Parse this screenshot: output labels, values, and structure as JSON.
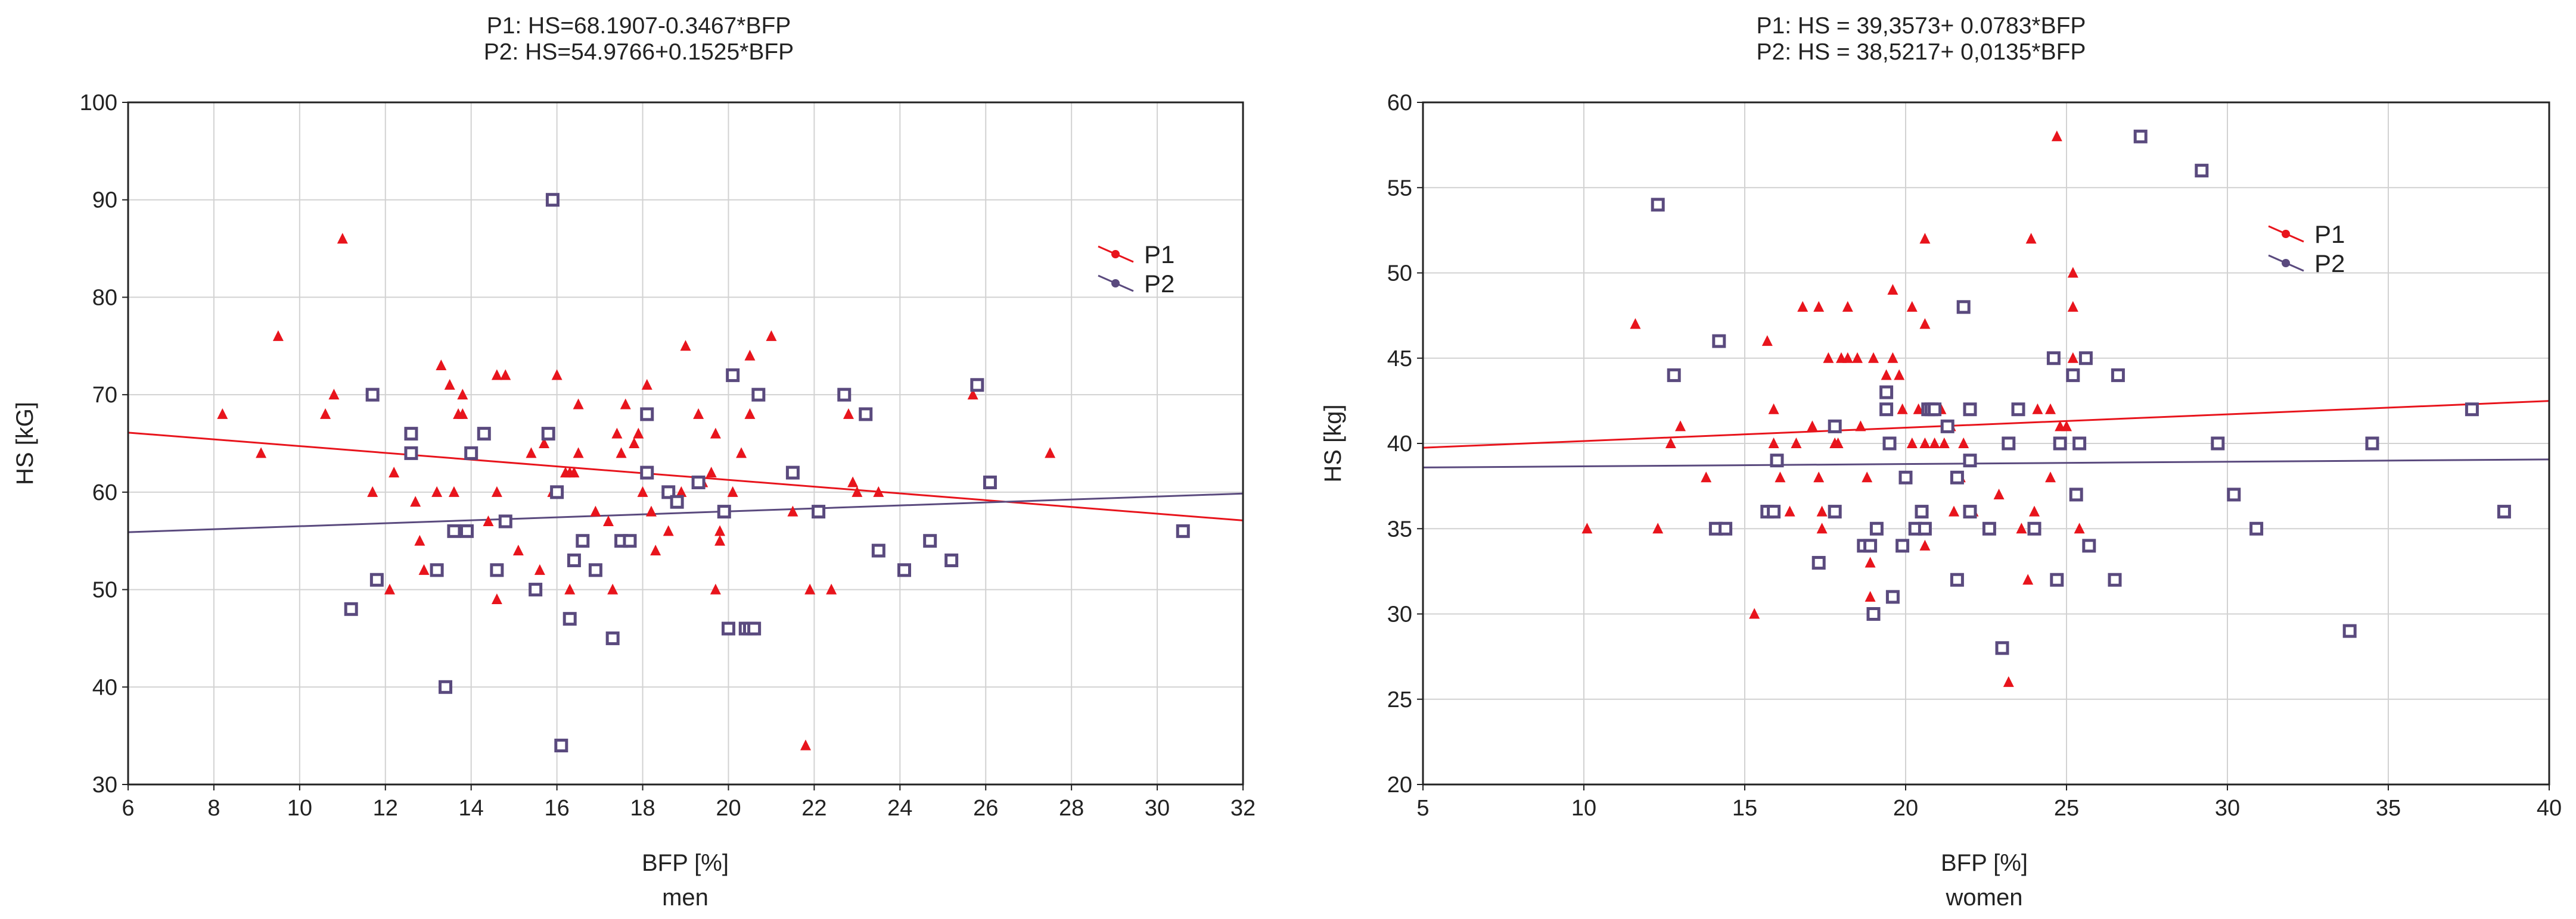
{
  "colors": {
    "p1": "#e8141c",
    "p2": "#5a4a7e",
    "grid": "#d2d2d2",
    "frame": "#222222"
  },
  "chart_data": [
    {
      "type": "scatter",
      "title": [
        "P1: HS=68.1907-0.3467*BFP",
        "P2: HS=54.9766+0.1525*BFP"
      ],
      "xlabel": "BFP [%]",
      "sublabel": "men",
      "ylabel": "HS [kG]",
      "xlim": [
        6,
        32
      ],
      "ylim": [
        30,
        100
      ],
      "xticks": [
        6,
        8,
        10,
        12,
        14,
        16,
        18,
        20,
        22,
        24,
        26,
        28,
        30,
        32
      ],
      "yticks": [
        30,
        40,
        50,
        60,
        70,
        80,
        90,
        100
      ],
      "legend": [
        "P1",
        "P2"
      ],
      "series": [
        {
          "name": "P1",
          "marker": "triangle",
          "fit": {
            "intercept": 68.1907,
            "slope": -0.3467
          },
          "points": [
            [
              8.2,
              68
            ],
            [
              9.1,
              64
            ],
            [
              9.5,
              76
            ],
            [
              10.6,
              68
            ],
            [
              10.8,
              70
            ],
            [
              11,
              86
            ],
            [
              11.7,
              60
            ],
            [
              12.1,
              50
            ],
            [
              12.2,
              62
            ],
            [
              12.7,
              59
            ],
            [
              12.8,
              55
            ],
            [
              12.9,
              52
            ],
            [
              13.2,
              60
            ],
            [
              13.3,
              73
            ],
            [
              13.5,
              71
            ],
            [
              13.6,
              60
            ],
            [
              13.7,
              68
            ],
            [
              13.8,
              68
            ],
            [
              13.8,
              70
            ],
            [
              14,
              64
            ],
            [
              14.4,
              57
            ],
            [
              14.6,
              72
            ],
            [
              14.6,
              60
            ],
            [
              14.6,
              49
            ],
            [
              14.8,
              72
            ],
            [
              15.1,
              54
            ],
            [
              15.4,
              64
            ],
            [
              15.6,
              52
            ],
            [
              15.7,
              65
            ],
            [
              15.9,
              60
            ],
            [
              16,
              72
            ],
            [
              16.2,
              62
            ],
            [
              16.3,
              62
            ],
            [
              16.3,
              50
            ],
            [
              16.4,
              62
            ],
            [
              16.5,
              69
            ],
            [
              16.5,
              64
            ],
            [
              16.9,
              58
            ],
            [
              17.2,
              57
            ],
            [
              17.3,
              50
            ],
            [
              17.4,
              66
            ],
            [
              17.5,
              64
            ],
            [
              17.6,
              69
            ],
            [
              17.8,
              65
            ],
            [
              17.9,
              66
            ],
            [
              18,
              60
            ],
            [
              18.1,
              71
            ],
            [
              18.2,
              58
            ],
            [
              18.3,
              54
            ],
            [
              18.6,
              56
            ],
            [
              18.9,
              60
            ],
            [
              19,
              75
            ],
            [
              19.3,
              68
            ],
            [
              19.4,
              61
            ],
            [
              19.6,
              62
            ],
            [
              19.7,
              66
            ],
            [
              19.7,
              50
            ],
            [
              19.8,
              56
            ],
            [
              19.8,
              55
            ],
            [
              20.1,
              60
            ],
            [
              20.3,
              64
            ],
            [
              20.5,
              74
            ],
            [
              20.5,
              68
            ],
            [
              21,
              76
            ],
            [
              21.5,
              58
            ],
            [
              21.9,
              50
            ],
            [
              21.8,
              34
            ],
            [
              22.4,
              50
            ],
            [
              22.8,
              68
            ],
            [
              22.9,
              61
            ],
            [
              23,
              60
            ],
            [
              23.5,
              60
            ],
            [
              25.7,
              70
            ],
            [
              27.5,
              64
            ]
          ]
        },
        {
          "name": "P2",
          "marker": "square",
          "fit": {
            "intercept": 54.9766,
            "slope": 0.1525
          },
          "points": [
            [
              11.2,
              48
            ],
            [
              11.7,
              70
            ],
            [
              11.8,
              51
            ],
            [
              12.6,
              66
            ],
            [
              12.6,
              64
            ],
            [
              13.2,
              52
            ],
            [
              13.4,
              40
            ],
            [
              13.6,
              56
            ],
            [
              13.9,
              56
            ],
            [
              14,
              64
            ],
            [
              14.3,
              66
            ],
            [
              14.6,
              52
            ],
            [
              14.8,
              57
            ],
            [
              15.5,
              50
            ],
            [
              15.8,
              66
            ],
            [
              15.9,
              90
            ],
            [
              16,
              60
            ],
            [
              16.1,
              34
            ],
            [
              16.3,
              47
            ],
            [
              16.4,
              53
            ],
            [
              16.6,
              55
            ],
            [
              16.9,
              52
            ],
            [
              17.3,
              45
            ],
            [
              17.5,
              55
            ],
            [
              17.7,
              55
            ],
            [
              18.1,
              68
            ],
            [
              18.1,
              62
            ],
            [
              18.6,
              60
            ],
            [
              18.8,
              59
            ],
            [
              19.3,
              61
            ],
            [
              19.9,
              58
            ],
            [
              20,
              46
            ],
            [
              20.1,
              72
            ],
            [
              20.4,
              46
            ],
            [
              20.5,
              46
            ],
            [
              20.6,
              46
            ],
            [
              20.7,
              70
            ],
            [
              21.5,
              62
            ],
            [
              22.1,
              58
            ],
            [
              22.7,
              70
            ],
            [
              23.2,
              68
            ],
            [
              23.5,
              54
            ],
            [
              24.1,
              52
            ],
            [
              24.7,
              55
            ],
            [
              25.2,
              53
            ],
            [
              25.8,
              71
            ],
            [
              26.1,
              61
            ],
            [
              30.6,
              56
            ]
          ]
        }
      ]
    },
    {
      "type": "scatter",
      "title": [
        "P1: HS = 39,3573+ 0.0783*BFP",
        "P2: HS = 38,5217+ 0,0135*BFP"
      ],
      "xlabel": "BFP [%]",
      "sublabel": "women",
      "ylabel": "HS [kg]",
      "xlim": [
        5,
        40
      ],
      "ylim": [
        20,
        60
      ],
      "xticks": [
        5,
        10,
        15,
        20,
        25,
        30,
        35,
        40
      ],
      "yticks": [
        20,
        25,
        30,
        35,
        40,
        45,
        50,
        55,
        60
      ],
      "legend": [
        "P1",
        "P2"
      ],
      "series": [
        {
          "name": "P1",
          "marker": "triangle",
          "fit": {
            "intercept": 39.3573,
            "slope": 0.0783
          },
          "points": [
            [
              10.1,
              35
            ],
            [
              11.6,
              47
            ],
            [
              12.3,
              35
            ],
            [
              12.7,
              40
            ],
            [
              13,
              41
            ],
            [
              13.8,
              38
            ],
            [
              14.1,
              35
            ],
            [
              15.3,
              30
            ],
            [
              15.7,
              46
            ],
            [
              15.9,
              42
            ],
            [
              15.9,
              40
            ],
            [
              16.1,
              38
            ],
            [
              16.4,
              36
            ],
            [
              16.6,
              40
            ],
            [
              16.8,
              48
            ],
            [
              17.1,
              41
            ],
            [
              17.3,
              48
            ],
            [
              17.3,
              38
            ],
            [
              17.4,
              36
            ],
            [
              17.4,
              35
            ],
            [
              17.6,
              45
            ],
            [
              17.8,
              40
            ],
            [
              17.9,
              40
            ],
            [
              18,
              45
            ],
            [
              18.2,
              48
            ],
            [
              18.2,
              45
            ],
            [
              18.5,
              45
            ],
            [
              18.6,
              41
            ],
            [
              18.8,
              38
            ],
            [
              18.9,
              31
            ],
            [
              18.9,
              33
            ],
            [
              19,
              45
            ],
            [
              19.4,
              44
            ],
            [
              19.6,
              45
            ],
            [
              19.6,
              49
            ],
            [
              19.8,
              44
            ],
            [
              19.9,
              42
            ],
            [
              20.2,
              48
            ],
            [
              20.2,
              40
            ],
            [
              20.4,
              42
            ],
            [
              20.6,
              52
            ],
            [
              20.6,
              47
            ],
            [
              20.6,
              40
            ],
            [
              20.6,
              34
            ],
            [
              20.9,
              40
            ],
            [
              21.1,
              42
            ],
            [
              21.2,
              40
            ],
            [
              21.4,
              41
            ],
            [
              21.5,
              36
            ],
            [
              21.7,
              38
            ],
            [
              21.8,
              40
            ],
            [
              22.1,
              36
            ],
            [
              22.6,
              35
            ],
            [
              22.9,
              37
            ],
            [
              23.2,
              26
            ],
            [
              23.6,
              35
            ],
            [
              23.8,
              32
            ],
            [
              23.9,
              52
            ],
            [
              24,
              36
            ],
            [
              24.1,
              42
            ],
            [
              24.5,
              42
            ],
            [
              24.5,
              38
            ],
            [
              24.7,
              58
            ],
            [
              24.8,
              41
            ],
            [
              25,
              41
            ],
            [
              25.2,
              50
            ],
            [
              25.2,
              48
            ],
            [
              25.2,
              45
            ],
            [
              25.4,
              35
            ]
          ]
        },
        {
          "name": "P2",
          "marker": "square",
          "fit": {
            "intercept": 38.5217,
            "slope": 0.0135
          },
          "points": [
            [
              12.3,
              54
            ],
            [
              12.8,
              44
            ],
            [
              14.2,
              46
            ],
            [
              14.1,
              35
            ],
            [
              14.4,
              35
            ],
            [
              15.7,
              36
            ],
            [
              15.9,
              36
            ],
            [
              16,
              39
            ],
            [
              17.3,
              33
            ],
            [
              17.8,
              41
            ],
            [
              17.8,
              36
            ],
            [
              18.7,
              34
            ],
            [
              18.9,
              34
            ],
            [
              19,
              30
            ],
            [
              19.1,
              35
            ],
            [
              19.4,
              43
            ],
            [
              19.4,
              42
            ],
            [
              19.5,
              40
            ],
            [
              19.6,
              31
            ],
            [
              19.9,
              34
            ],
            [
              20,
              38
            ],
            [
              20.3,
              35
            ],
            [
              20.5,
              36
            ],
            [
              20.6,
              35
            ],
            [
              20.7,
              42
            ],
            [
              20.8,
              42
            ],
            [
              20.9,
              42
            ],
            [
              21.3,
              41
            ],
            [
              21.6,
              38
            ],
            [
              21.6,
              32
            ],
            [
              21.8,
              48
            ],
            [
              22,
              39
            ],
            [
              22,
              36
            ],
            [
              22,
              42
            ],
            [
              22.6,
              35
            ],
            [
              23,
              28
            ],
            [
              23.2,
              40
            ],
            [
              23.5,
              42
            ],
            [
              24,
              35
            ],
            [
              24.6,
              45
            ],
            [
              24.7,
              32
            ],
            [
              24.8,
              40
            ],
            [
              25.2,
              44
            ],
            [
              25.3,
              37
            ],
            [
              25.4,
              40
            ],
            [
              25.6,
              45
            ],
            [
              25.7,
              34
            ],
            [
              26.5,
              32
            ],
            [
              26.6,
              44
            ],
            [
              27.3,
              58
            ],
            [
              29.2,
              56
            ],
            [
              29.7,
              40
            ],
            [
              30.2,
              37
            ],
            [
              30.9,
              35
            ],
            [
              33.8,
              29
            ],
            [
              34.5,
              40
            ],
            [
              37.6,
              42
            ],
            [
              38.6,
              36
            ]
          ]
        }
      ]
    }
  ]
}
